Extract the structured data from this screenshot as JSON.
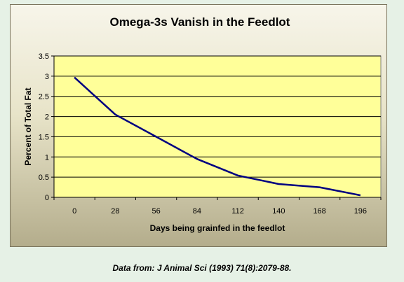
{
  "chart_data": {
    "type": "line",
    "title": "Omega-3s Vanish in the Feedlot",
    "xlabel": "Days being grainfed in the feedlot",
    "ylabel": "Percent of Total Fat",
    "categories": [
      "0",
      "28",
      "56",
      "84",
      "112",
      "140",
      "168",
      "196"
    ],
    "series": [
      {
        "values": [
          2.97,
          2.05,
          1.5,
          0.95,
          0.54,
          0.33,
          0.25,
          0.05
        ],
        "color": "#000080"
      }
    ],
    "ylim": [
      0,
      3.5
    ],
    "yticks": [
      "0",
      "0.5",
      "1",
      "1.5",
      "2",
      "2.5",
      "3",
      "3.5"
    ],
    "grid": true,
    "legend": "none",
    "plot_background": "#ffff99"
  },
  "caption": "Data from: J Animal Sci (1993) 71(8):2079-88."
}
